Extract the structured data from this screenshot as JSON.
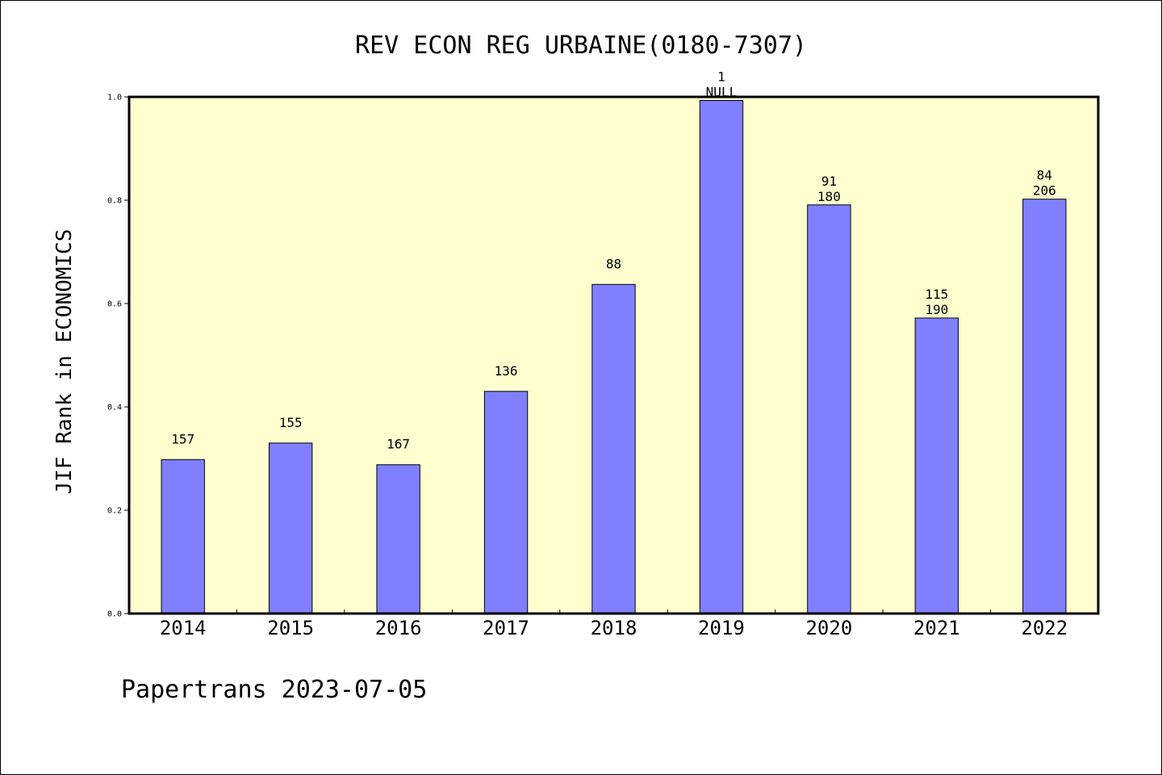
{
  "chart_data": {
    "type": "bar",
    "title": "REV ECON REG URBAINE(0180-7307)",
    "ylabel": "JIF Rank in ECONOMICS",
    "xlabel": "",
    "ylim": [
      0,
      1.0
    ],
    "yticks": [
      "0.0",
      "0.2",
      "0.4",
      "0.6",
      "0.8",
      "1.0"
    ],
    "categories": [
      "2014",
      "2015",
      "2016",
      "2017",
      "2018",
      "2019",
      "2020",
      "2021",
      "2022"
    ],
    "values": [
      0.298,
      0.33,
      0.288,
      0.43,
      0.637,
      0.993,
      0.791,
      0.572,
      0.802
    ],
    "labels_top": [
      "",
      "",
      "",
      "",
      "",
      "1",
      "91",
      "115",
      "84"
    ],
    "labels_bottom": [
      "157",
      "155",
      "167",
      "136",
      "88",
      "NULL",
      "180",
      "190",
      "206"
    ],
    "plot_background": "#ffffd0",
    "bar_color": "#8080ff"
  },
  "footer": "Papertrans 2023-07-05"
}
